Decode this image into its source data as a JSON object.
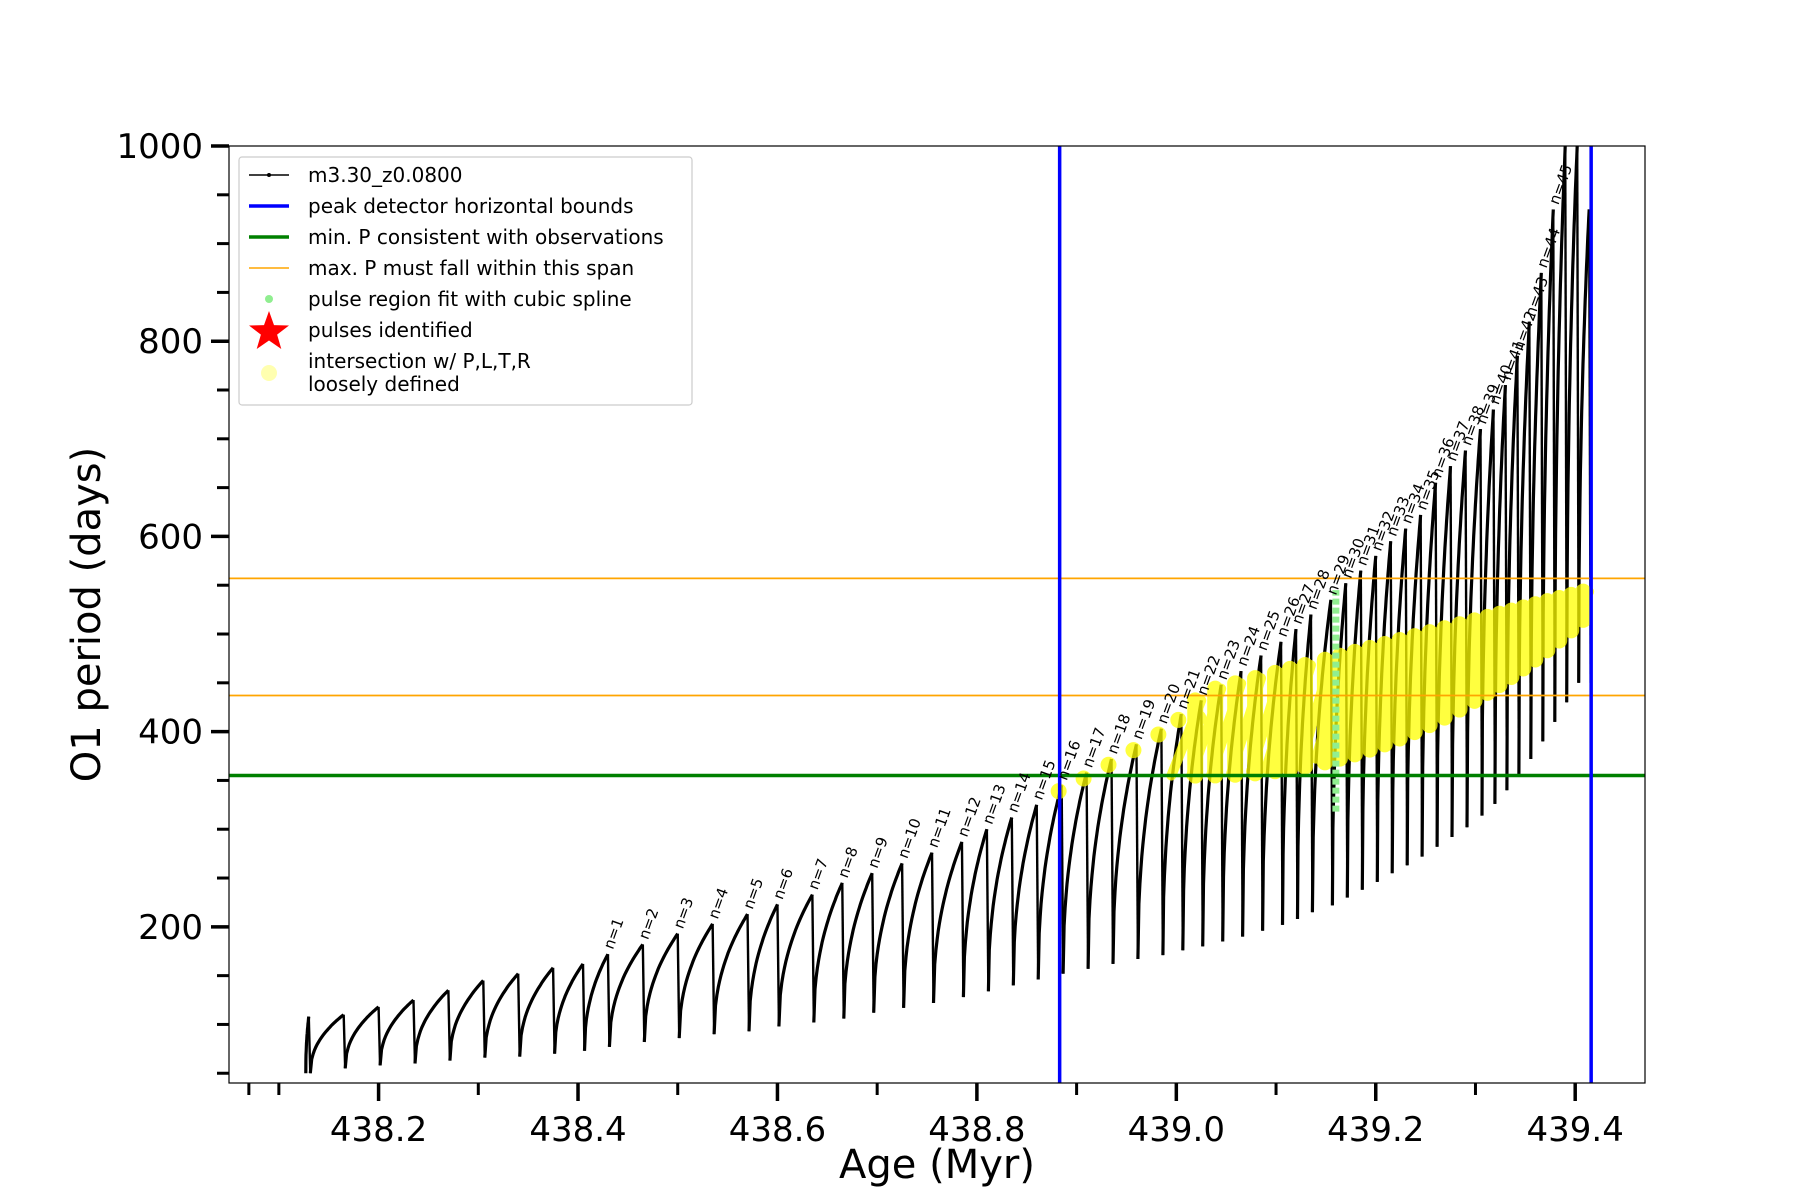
{
  "chart_data": {
    "type": "line",
    "xlabel": "Age (Myr)",
    "ylabel": "O1 period (days)",
    "xlim": [
      438.05,
      439.47
    ],
    "ylim": [
      40,
      1000
    ],
    "x_major_ticks": [
      438.2,
      438.4,
      438.6,
      438.8,
      439.0,
      439.2,
      439.4
    ],
    "x_tick_labels": [
      "438.2",
      "438.4",
      "438.6",
      "438.8",
      "439.0",
      "439.2",
      "439.4"
    ],
    "x_minor_ticks": [
      438.1,
      438.3,
      438.5,
      438.7,
      438.9,
      439.1,
      439.3
    ],
    "y_major_ticks": [
      200,
      400,
      600,
      800,
      1000
    ],
    "y_tick_labels": [
      "200",
      "400",
      "600",
      "800",
      "1000"
    ],
    "y_minor_step": 50,
    "grid": false,
    "legend_position": "top-left",
    "legend": [
      {
        "label": "m3.30_z0.0800",
        "marker": "line-dot",
        "color": "#000000"
      },
      {
        "label": "peak detector horizontal bounds",
        "marker": "line",
        "color": "#0000ff"
      },
      {
        "label": "min. P consistent with observations",
        "marker": "line",
        "color": "#008000"
      },
      {
        "label": "max. P must fall within this span",
        "marker": "thin-line",
        "color": "#ffa500"
      },
      {
        "label": "pulse region fit with cubic spline",
        "marker": "dot",
        "color": "#90ee90"
      },
      {
        "label": "pulses identified",
        "marker": "star",
        "color": "#ff0000"
      },
      {
        "label": "intersection w/ P,L,T,R",
        "label2": "loosely defined",
        "marker": "circle",
        "color": "#ffffb0"
      }
    ],
    "vertical_lines": [
      {
        "name": "peak detector horizontal bounds",
        "x": [
          438.883,
          439.416
        ],
        "color": "#0000ff"
      }
    ],
    "horizontal_lines": [
      {
        "name": "min. P consistent with observations",
        "y": 355,
        "color": "#008000"
      },
      {
        "name": "max. P must fall within this span",
        "y": [
          437,
          557
        ],
        "color": "#ffa500"
      }
    ],
    "series": [
      {
        "name": "m3.30_z0.0800",
        "color": "#000000",
        "pulses_before_n1": [
          {
            "x": 438.13,
            "y0": 50,
            "y1": 108
          },
          {
            "x": 438.165,
            "y0": 50,
            "y1": 110
          },
          {
            "x": 438.2,
            "y0": 55,
            "y1": 118
          },
          {
            "x": 438.235,
            "y0": 58,
            "y1": 125
          },
          {
            "x": 438.27,
            "y0": 60,
            "y1": 135
          },
          {
            "x": 438.305,
            "y0": 63,
            "y1": 145
          },
          {
            "x": 438.34,
            "y0": 66,
            "y1": 152
          },
          {
            "x": 438.375,
            "y0": 67,
            "y1": 158
          },
          {
            "x": 438.405,
            "y0": 70,
            "y1": 162
          }
        ],
        "labeled_pulses": [
          {
            "n": "n=1",
            "x": 438.43,
            "peak": 172,
            "trough": 73
          },
          {
            "n": "n=2",
            "x": 438.465,
            "peak": 182,
            "trough": 77
          },
          {
            "n": "n=3",
            "x": 438.5,
            "peak": 193,
            "trough": 82
          },
          {
            "n": "n=4",
            "x": 438.535,
            "peak": 203,
            "trough": 86
          },
          {
            "n": "n=5",
            "x": 438.57,
            "peak": 213,
            "trough": 90
          },
          {
            "n": "n=6",
            "x": 438.6,
            "peak": 223,
            "trough": 93
          },
          {
            "n": "n=7",
            "x": 438.635,
            "peak": 233,
            "trough": 98
          },
          {
            "n": "n=8",
            "x": 438.665,
            "peak": 245,
            "trough": 102
          },
          {
            "n": "n=9",
            "x": 438.695,
            "peak": 255,
            "trough": 106
          },
          {
            "n": "n=10",
            "x": 438.725,
            "peak": 265,
            "trough": 112
          },
          {
            "n": "n=11",
            "x": 438.755,
            "peak": 276,
            "trough": 117
          },
          {
            "n": "n=12",
            "x": 438.785,
            "peak": 287,
            "trough": 122
          },
          {
            "n": "n=13",
            "x": 438.81,
            "peak": 300,
            "trough": 128
          },
          {
            "n": "n=14",
            "x": 438.835,
            "peak": 312,
            "trough": 134
          },
          {
            "n": "n=15",
            "x": 438.86,
            "peak": 325,
            "trough": 140
          },
          {
            "n": "n=16",
            "x": 438.885,
            "peak": 345,
            "trough": 146
          },
          {
            "n": "n=17",
            "x": 438.91,
            "peak": 358,
            "trough": 152
          },
          {
            "n": "n=18",
            "x": 438.935,
            "peak": 372,
            "trough": 157
          },
          {
            "n": "n=19",
            "x": 438.96,
            "peak": 387,
            "trough": 162
          },
          {
            "n": "n=20",
            "x": 438.985,
            "peak": 403,
            "trough": 167
          },
          {
            "n": "n=21",
            "x": 439.005,
            "peak": 418,
            "trough": 171
          },
          {
            "n": "n=22",
            "x": 439.025,
            "peak": 432,
            "trough": 176
          },
          {
            "n": "n=23",
            "x": 439.045,
            "peak": 448,
            "trough": 180
          },
          {
            "n": "n=24",
            "x": 439.065,
            "peak": 462,
            "trough": 185
          },
          {
            "n": "n=25",
            "x": 439.085,
            "peak": 478,
            "trough": 190
          },
          {
            "n": "n=26",
            "x": 439.105,
            "peak": 492,
            "trough": 196
          },
          {
            "n": "n=27",
            "x": 439.12,
            "peak": 505,
            "trough": 202
          },
          {
            "n": "n=28",
            "x": 439.135,
            "peak": 520,
            "trough": 208
          },
          {
            "n": "n=29",
            "x": 439.155,
            "peak": 535,
            "trough": 215
          },
          {
            "n": "n=30",
            "x": 439.17,
            "peak": 552,
            "trough": 222
          },
          {
            "n": "n=31",
            "x": 439.185,
            "peak": 565,
            "trough": 230
          },
          {
            "n": "n=32",
            "x": 439.2,
            "peak": 580,
            "trough": 238
          },
          {
            "n": "n=33",
            "x": 439.215,
            "peak": 595,
            "trough": 246
          },
          {
            "n": "n=34",
            "x": 439.23,
            "peak": 608,
            "trough": 255
          },
          {
            "n": "n=35",
            "x": 439.245,
            "peak": 622,
            "trough": 263
          },
          {
            "n": "n=36",
            "x": 439.26,
            "peak": 655,
            "trough": 272
          },
          {
            "n": "n=37",
            "x": 439.275,
            "peak": 672,
            "trough": 282
          },
          {
            "n": "n=38",
            "x": 439.29,
            "peak": 688,
            "trough": 292
          },
          {
            "n": "n=39",
            "x": 439.305,
            "peak": 710,
            "trough": 302
          },
          {
            "n": "n=40",
            "x": 439.318,
            "peak": 730,
            "trough": 314
          },
          {
            "n": "n=41",
            "x": 439.33,
            "peak": 755,
            "trough": 326
          },
          {
            "n": "n=42",
            "x": 439.342,
            "peak": 785,
            "trough": 340
          },
          {
            "n": "n=43",
            "x": 439.354,
            "peak": 820,
            "trough": 355
          },
          {
            "n": "n=44",
            "x": 439.366,
            "peak": 870,
            "trough": 372
          },
          {
            "n": "n=45",
            "x": 439.378,
            "peak": 935,
            "trough": 390
          },
          {
            "n": "",
            "x": 439.39,
            "peak": 1000,
            "trough": 410
          },
          {
            "n": "",
            "x": 439.402,
            "peak": 1000,
            "trough": 430
          },
          {
            "n": "",
            "x": 439.414,
            "peak": 935,
            "trough": 450
          }
        ]
      }
    ],
    "spline_region": {
      "name": "pulse region fit with cubic spline",
      "x": 439.16,
      "y": [
        318,
        545
      ],
      "color": "#90ee90"
    },
    "intersection_band": {
      "name": "intersection w/ P,L,T,R loosely defined",
      "x_start": 439.03,
      "x_end": 439.42,
      "lower": [
        355,
        520
      ],
      "upper": [
        440,
        545
      ],
      "color": "#ffff00"
    }
  }
}
